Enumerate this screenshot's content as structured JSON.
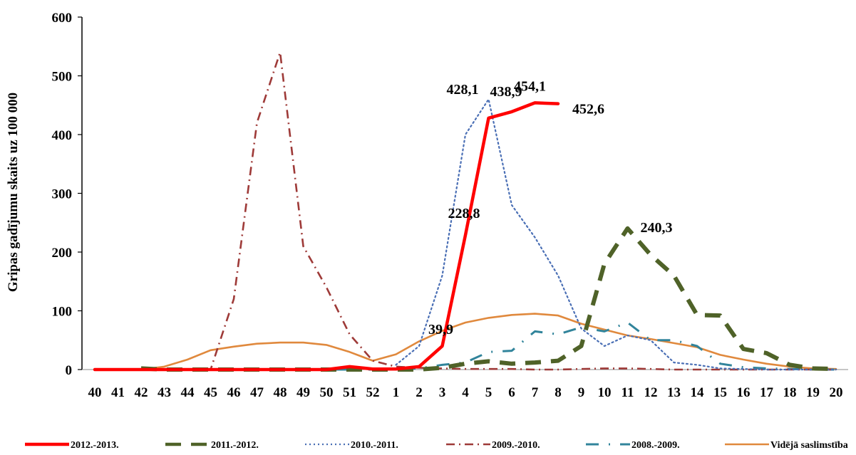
{
  "chart_data": {
    "type": "line",
    "ylabel": "Gripas gadījumu skaits uz 100 000",
    "xlabel": "",
    "ylim": [
      0,
      600
    ],
    "yticks": [
      0,
      100,
      200,
      300,
      400,
      500,
      600
    ],
    "categories": [
      "40",
      "41",
      "42",
      "43",
      "44",
      "45",
      "46",
      "47",
      "48",
      "49",
      "50",
      "51",
      "52",
      "1",
      "2",
      "3",
      "4",
      "5",
      "6",
      "7",
      "8",
      "9",
      "10",
      "11",
      "12",
      "13",
      "14",
      "15",
      "16",
      "17",
      "18",
      "19",
      "20"
    ],
    "grid": false,
    "legend_position": "bottom",
    "series": [
      {
        "name": "2012.-2013.",
        "color": "#ff0000",
        "values": [
          0,
          0,
          0,
          0,
          0,
          0,
          0,
          0,
          0,
          0,
          0,
          5,
          1,
          1,
          5,
          39.9,
          228.8,
          428.1,
          438.9,
          454.1,
          452.6,
          null,
          null,
          null,
          null,
          null,
          null,
          null,
          null,
          null,
          null,
          null,
          null
        ]
      },
      {
        "name": "2011.-2012.",
        "color": "#4f6228",
        "values": [
          null,
          null,
          2,
          0,
          0,
          0,
          0,
          0,
          0,
          0,
          0,
          0,
          0,
          0,
          0,
          3,
          10,
          14,
          10,
          12,
          15,
          40,
          180,
          240.3,
          195,
          160,
          93,
          92,
          35,
          28,
          8,
          2,
          1
        ]
      },
      {
        "name": "2010.-2011.",
        "color": "#4a6fb5",
        "values": [
          null,
          null,
          null,
          null,
          null,
          null,
          null,
          null,
          null,
          null,
          null,
          null,
          null,
          8,
          40,
          160,
          400,
          460,
          280,
          225,
          160,
          70,
          40,
          58,
          50,
          12,
          8,
          2,
          1,
          0,
          0,
          0,
          0
        ]
      },
      {
        "name": "2009.-2010.",
        "color": "#9e3a38",
        "values": [
          0,
          0,
          0,
          0,
          0,
          0,
          120,
          420,
          540,
          210,
          140,
          60,
          15,
          5,
          3,
          2,
          1,
          1,
          1,
          0,
          0,
          1,
          2,
          2,
          1,
          0,
          0,
          0,
          0,
          0,
          0,
          0,
          0
        ]
      },
      {
        "name": "2008.-2009.",
        "color": "#31849b",
        "values": [
          0,
          0,
          0,
          0,
          0,
          0,
          0,
          0,
          0,
          0,
          0,
          0,
          0,
          0,
          2,
          8,
          12,
          30,
          32,
          65,
          60,
          72,
          65,
          80,
          50,
          50,
          40,
          10,
          4,
          2,
          1,
          0,
          0
        ]
      },
      {
        "name": "Vidējā saslimstība",
        "color": "#e0893d",
        "values": [
          null,
          null,
          0,
          5,
          17,
          33,
          39,
          44,
          46,
          46,
          42,
          30,
          15,
          26,
          48,
          66,
          80,
          88,
          93,
          95,
          92,
          78,
          68,
          58,
          52,
          45,
          38,
          25,
          17,
          10,
          5,
          2,
          1
        ]
      }
    ],
    "annotations": [
      {
        "text": "39,9",
        "series": "2012.-2013.",
        "category": "3"
      },
      {
        "text": "228,8",
        "series": "2012.-2013.",
        "category": "4"
      },
      {
        "text": "428,1",
        "series": "2012.-2013.",
        "category": "5"
      },
      {
        "text": "438,9",
        "series": "2012.-2013.",
        "category": "6"
      },
      {
        "text": "454,1",
        "series": "2012.-2013.",
        "category": "7"
      },
      {
        "text": "452,6",
        "series": "2012.-2013.",
        "category": "8"
      },
      {
        "text": "240,3",
        "series": "2011.-2012.",
        "category": "11"
      }
    ]
  }
}
